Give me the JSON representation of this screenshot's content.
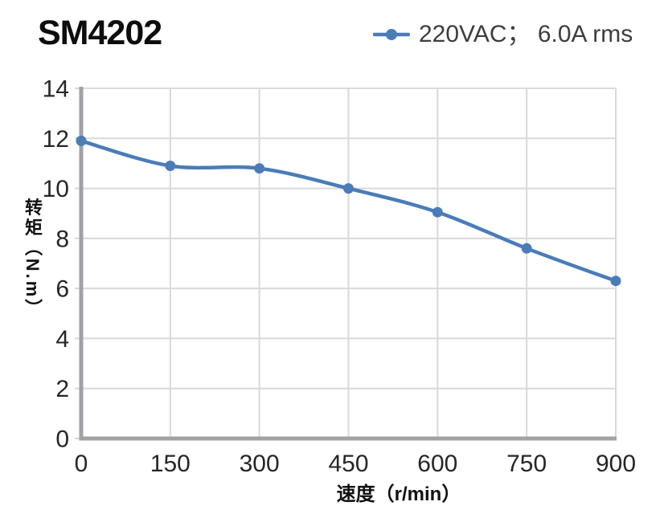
{
  "header": {
    "title": "SM4202"
  },
  "legend": {
    "label": "220VAC； 6.0A rms",
    "marker": "line-with-circle"
  },
  "axes": {
    "x_label": "速度（r/min）",
    "y_label": "转矩（N.m）"
  },
  "colors": {
    "series_blue": "#4A7CB8",
    "grid": "#D9D9D9",
    "axis": "#A1A1A7",
    "tick_text": "#262626",
    "background": "#FFFFFF"
  },
  "chart_data": {
    "type": "line",
    "title": "SM4202",
    "x": [
      0,
      150,
      300,
      450,
      600,
      750,
      900
    ],
    "series": [
      {
        "name": "220VAC； 6.0A rms",
        "color": "#4A7CB8",
        "values": [
          11.9,
          10.9,
          10.8,
          10.0,
          9.05,
          7.6,
          6.3
        ]
      }
    ],
    "xlabel": "速度（r/min）",
    "ylabel": "转矩（N.m）",
    "xlim": [
      0,
      900
    ],
    "ylim": [
      0,
      14
    ],
    "x_ticks": [
      0,
      150,
      300,
      450,
      600,
      750,
      900
    ],
    "y_ticks": [
      0,
      2,
      4,
      6,
      8,
      10,
      12,
      14
    ],
    "grid": true,
    "legend_position": "top-right",
    "marker": "circle",
    "line_smooth": true
  }
}
